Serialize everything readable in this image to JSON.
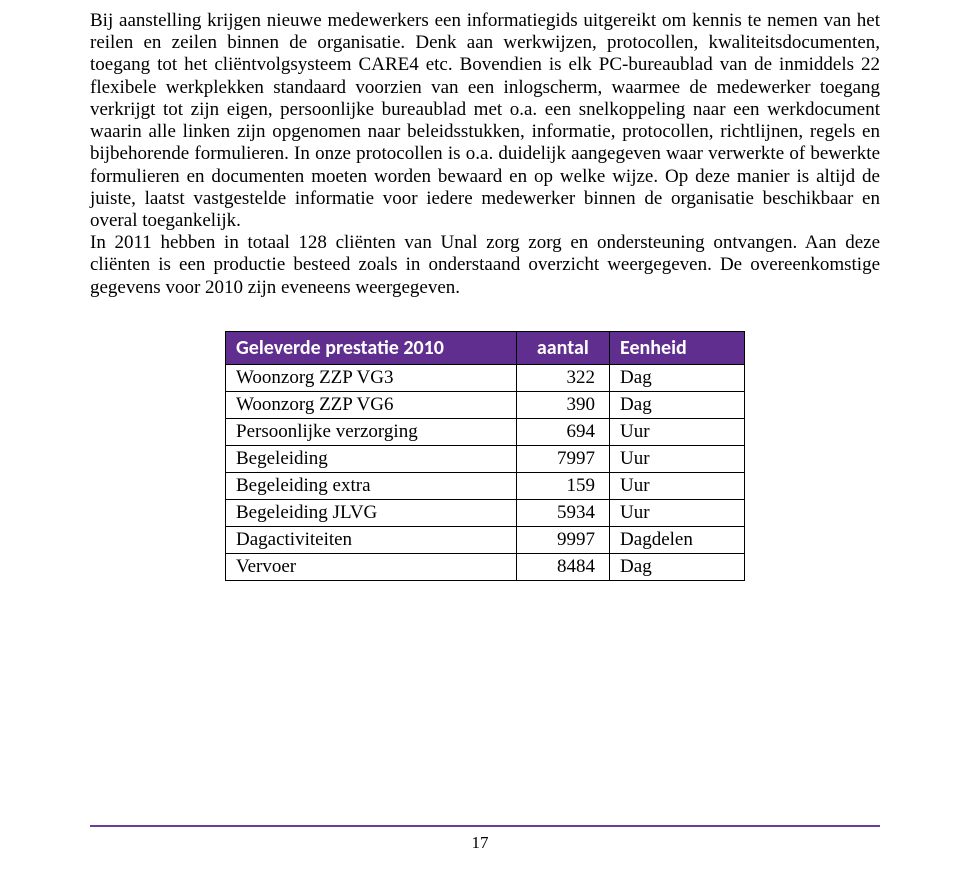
{
  "paragraphs": {
    "p1": "Bij aanstelling krijgen nieuwe medewerkers een informatiegids uitgereikt om kennis te nemen van het reilen en zeilen binnen de organisatie. Denk aan werkwijzen, protocollen, kwaliteitsdocumenten, toegang tot het cliëntvolgsysteem CARE4 etc. Bovendien is elk PC-bureaublad van de inmiddels 22 flexibele werkplekken standaard voorzien van een inlogscherm, waarmee de medewerker toegang verkrijgt tot zijn eigen, persoonlijke bureaublad met o.a. een snelkoppeling naar een werkdocument waarin alle linken zijn opgenomen naar beleidsstukken, informatie, protocollen, richtlijnen, regels en bijbehorende formulieren. In onze protocollen is o.a. duidelijk aangegeven waar verwerkte of bewerkte formulieren en documenten moeten worden bewaard en op welke wijze. Op deze manier is altijd de juiste, laatst vastgestelde informatie voor iedere medewerker binnen de organisatie beschikbaar en overal toegankelijk.",
    "p2": "In 2011 hebben in totaal 128 cliënten van Unal zorg zorg en ondersteuning ontvangen. Aan deze cliënten is een productie besteed zoals in onderstaand overzicht weergegeven. De overeenkomstige gegevens voor 2010 zijn eveneens weergegeven."
  },
  "table": {
    "type": "table",
    "header_bg": "#5f2e8e",
    "header_fg": "#ffffff",
    "border_color": "#000000",
    "columns": [
      "Geleverde prestatie 2010",
      "aantal",
      "Eenheid"
    ],
    "rows": [
      [
        "Woonzorg ZZP VG3",
        "322",
        "Dag"
      ],
      [
        "Woonzorg ZZP VG6",
        "390",
        "Dag"
      ],
      [
        "Persoonlijke verzorging",
        "694",
        "Uur"
      ],
      [
        "Begeleiding",
        "7997",
        "Uur"
      ],
      [
        "Begeleiding extra",
        "159",
        "Uur"
      ],
      [
        "Begeleiding JLVG",
        "5934",
        "Uur"
      ],
      [
        "Dagactiviteiten",
        "9997",
        "Dagdelen"
      ],
      [
        "Vervoer",
        "8484",
        "Dag"
      ]
    ]
  },
  "footer": {
    "line_color": "#6a3d9a",
    "page_number": "17"
  }
}
